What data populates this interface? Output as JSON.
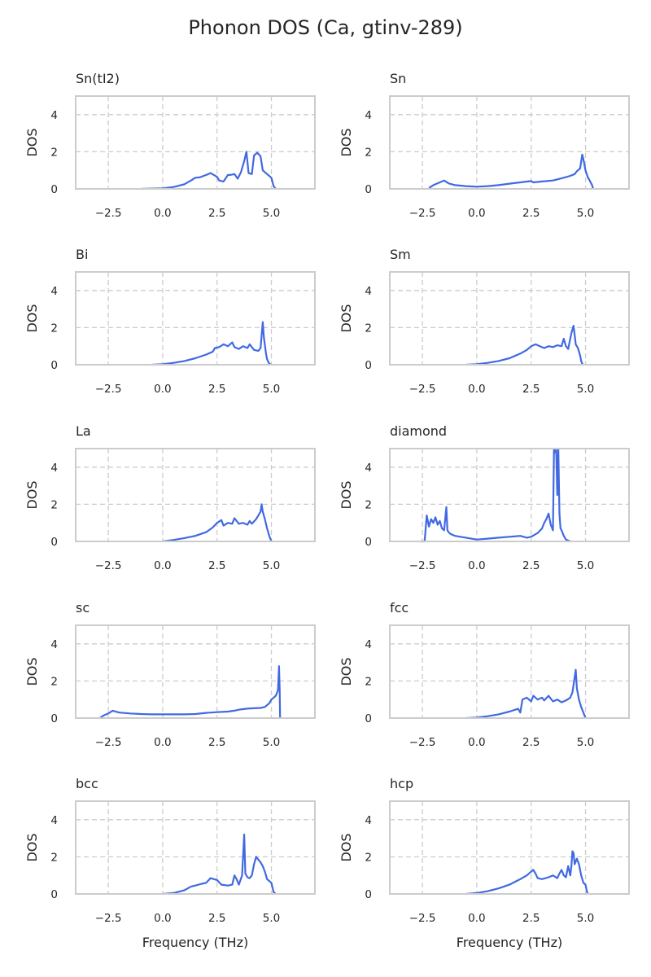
{
  "title": "Phonon DOS (Ca, gtinv-289)",
  "accent_color": "#4169e1",
  "chart_data": [
    {
      "type": "line",
      "title": "Sn(tI2)",
      "xlabel": "",
      "ylabel": "DOS",
      "xlim": [
        -4.0,
        7.0
      ],
      "ylim": [
        0,
        5
      ],
      "xticks": [
        -2.5,
        0.0,
        2.5,
        5.0
      ],
      "xtick_labels": [
        "−2.5",
        "0.0",
        "2.5",
        "5.0"
      ],
      "yticks": [
        0,
        2,
        4
      ],
      "ytick_labels": [
        "0",
        "2",
        "4"
      ],
      "grid": true,
      "x": [
        -1.0,
        0.0,
        0.5,
        1.0,
        1.3,
        1.5,
        1.7,
        2.0,
        2.2,
        2.5,
        2.6,
        2.8,
        3.0,
        3.1,
        3.3,
        3.45,
        3.6,
        3.75,
        3.85,
        3.95,
        4.1,
        4.2,
        4.35,
        4.5,
        4.6,
        4.8,
        5.0,
        5.1,
        5.2
      ],
      "y": [
        0.0,
        0.03,
        0.1,
        0.25,
        0.45,
        0.6,
        0.62,
        0.75,
        0.85,
        0.65,
        0.45,
        0.4,
        0.75,
        0.75,
        0.8,
        0.55,
        0.9,
        1.5,
        2.0,
        0.85,
        0.8,
        1.8,
        1.95,
        1.75,
        1.0,
        0.8,
        0.6,
        0.15,
        0.0
      ]
    },
    {
      "type": "line",
      "title": "Sn",
      "xlabel": "",
      "ylabel": "DOS",
      "xlim": [
        -4.0,
        7.0
      ],
      "ylim": [
        0,
        5
      ],
      "xticks": [
        -2.5,
        0.0,
        2.5,
        5.0
      ],
      "xtick_labels": [
        "−2.5",
        "0.0",
        "2.5",
        "5.0"
      ],
      "yticks": [
        0,
        2,
        4
      ],
      "ytick_labels": [
        "0",
        "2",
        "4"
      ],
      "grid": true,
      "x": [
        -2.2,
        -2.0,
        -1.7,
        -1.5,
        -1.3,
        -1.0,
        -0.5,
        0.0,
        0.5,
        1.0,
        1.5,
        2.0,
        2.5,
        2.6,
        3.0,
        3.5,
        4.0,
        4.3,
        4.5,
        4.6,
        4.75,
        4.85,
        4.9,
        5.0,
        5.1,
        5.3,
        5.35
      ],
      "y": [
        0.05,
        0.2,
        0.35,
        0.45,
        0.3,
        0.2,
        0.15,
        0.12,
        0.15,
        0.2,
        0.28,
        0.35,
        0.42,
        0.35,
        0.4,
        0.45,
        0.6,
        0.7,
        0.8,
        0.95,
        1.1,
        1.85,
        1.6,
        1.0,
        0.65,
        0.2,
        0.0
      ]
    },
    {
      "type": "line",
      "title": "Bi",
      "xlabel": "",
      "ylabel": "DOS",
      "xlim": [
        -4.0,
        7.0
      ],
      "ylim": [
        0,
        5
      ],
      "xticks": [
        -2.5,
        0.0,
        2.5,
        5.0
      ],
      "xtick_labels": [
        "−2.5",
        "0.0",
        "2.5",
        "5.0"
      ],
      "yticks": [
        0,
        2,
        4
      ],
      "ytick_labels": [
        "0",
        "2",
        "4"
      ],
      "grid": true,
      "x": [
        -0.5,
        0.0,
        0.5,
        1.0,
        1.5,
        2.0,
        2.3,
        2.4,
        2.6,
        2.8,
        3.0,
        3.2,
        3.3,
        3.5,
        3.7,
        3.9,
        4.0,
        4.2,
        4.4,
        4.5,
        4.6,
        4.65,
        4.75,
        4.8,
        4.9,
        5.0
      ],
      "y": [
        0.0,
        0.03,
        0.1,
        0.2,
        0.35,
        0.55,
        0.7,
        0.9,
        0.95,
        1.1,
        1.0,
        1.2,
        0.95,
        0.85,
        1.0,
        0.9,
        1.1,
        0.8,
        0.75,
        0.9,
        2.3,
        1.5,
        0.6,
        0.3,
        0.05,
        0.0
      ]
    },
    {
      "type": "line",
      "title": "Sm",
      "xlabel": "",
      "ylabel": "DOS",
      "xlim": [
        -4.0,
        7.0
      ],
      "ylim": [
        0,
        5
      ],
      "xticks": [
        -2.5,
        0.0,
        2.5,
        5.0
      ],
      "xtick_labels": [
        "−2.5",
        "0.0",
        "2.5",
        "5.0"
      ],
      "yticks": [
        0,
        2,
        4
      ],
      "ytick_labels": [
        "0",
        "2",
        "4"
      ],
      "grid": true,
      "x": [
        -0.5,
        0.0,
        0.5,
        1.0,
        1.5,
        2.0,
        2.3,
        2.5,
        2.7,
        2.9,
        3.1,
        3.3,
        3.5,
        3.7,
        3.9,
        4.0,
        4.1,
        4.2,
        4.35,
        4.45,
        4.5,
        4.55,
        4.65,
        4.75,
        4.8,
        4.85,
        4.9
      ],
      "y": [
        0.0,
        0.03,
        0.1,
        0.2,
        0.35,
        0.6,
        0.8,
        1.0,
        1.1,
        1.0,
        0.9,
        1.0,
        0.95,
        1.05,
        1.0,
        1.4,
        1.0,
        0.85,
        1.7,
        2.1,
        1.6,
        1.1,
        0.9,
        0.5,
        0.2,
        0.05,
        0.0
      ]
    },
    {
      "type": "line",
      "title": "La",
      "xlabel": "",
      "ylabel": "DOS",
      "xlim": [
        -4.0,
        7.0
      ],
      "ylim": [
        0,
        5
      ],
      "xticks": [
        -2.5,
        0.0,
        2.5,
        5.0
      ],
      "xtick_labels": [
        "−2.5",
        "0.0",
        "2.5",
        "5.0"
      ],
      "yticks": [
        0,
        2,
        4
      ],
      "ytick_labels": [
        "0",
        "2",
        "4"
      ],
      "grid": true,
      "x": [
        0.0,
        0.5,
        1.0,
        1.5,
        2.0,
        2.3,
        2.5,
        2.7,
        2.8,
        3.0,
        3.2,
        3.3,
        3.5,
        3.7,
        3.9,
        4.0,
        4.1,
        4.3,
        4.5,
        4.55,
        4.6,
        4.7,
        4.8,
        4.9,
        5.0
      ],
      "y": [
        0.0,
        0.08,
        0.18,
        0.3,
        0.5,
        0.75,
        1.0,
        1.15,
        0.85,
        1.0,
        0.95,
        1.25,
        0.95,
        1.0,
        0.9,
        1.1,
        0.95,
        1.2,
        1.6,
        2.0,
        1.6,
        1.2,
        0.7,
        0.3,
        0.0
      ]
    },
    {
      "type": "line",
      "title": "diamond",
      "xlabel": "",
      "ylabel": "DOS",
      "xlim": [
        -4.0,
        7.0
      ],
      "ylim": [
        0,
        5
      ],
      "xticks": [
        -2.5,
        0.0,
        2.5,
        5.0
      ],
      "xtick_labels": [
        "−2.5",
        "0.0",
        "2.5",
        "5.0"
      ],
      "yticks": [
        0,
        2,
        4
      ],
      "ytick_labels": [
        "0",
        "2",
        "4"
      ],
      "grid": true,
      "x": [
        -2.6,
        -2.4,
        -2.3,
        -2.2,
        -2.1,
        -2.0,
        -1.9,
        -1.8,
        -1.7,
        -1.6,
        -1.5,
        -1.4,
        -1.35,
        -1.3,
        -1.2,
        -1.0,
        -0.5,
        0.0,
        0.5,
        1.0,
        1.5,
        2.0,
        2.3,
        2.5,
        2.8,
        3.0,
        3.1,
        3.2,
        3.3,
        3.4,
        3.5,
        3.55,
        3.6,
        3.65,
        3.7,
        3.75,
        3.8,
        3.85,
        3.9,
        4.0,
        4.1,
        4.2,
        4.3
      ],
      "y": [
        0.0,
        0.0,
        1.4,
        0.8,
        1.2,
        1.0,
        1.3,
        0.9,
        1.1,
        0.7,
        0.6,
        1.85,
        0.6,
        0.5,
        0.4,
        0.3,
        0.2,
        0.1,
        0.15,
        0.2,
        0.25,
        0.3,
        0.2,
        0.25,
        0.45,
        0.7,
        1.0,
        1.2,
        1.5,
        0.9,
        0.6,
        5.0,
        4.8,
        5.0,
        2.5,
        5.0,
        1.5,
        0.7,
        0.6,
        0.3,
        0.1,
        0.05,
        0.0
      ]
    },
    {
      "type": "line",
      "title": "sc",
      "xlabel": "",
      "ylabel": "DOS",
      "xlim": [
        -4.0,
        7.0
      ],
      "ylim": [
        0,
        5
      ],
      "xticks": [
        -2.5,
        0.0,
        2.5,
        5.0
      ],
      "xtick_labels": [
        "−2.5",
        "0.0",
        "2.5",
        "5.0"
      ],
      "yticks": [
        0,
        2,
        4
      ],
      "ytick_labels": [
        "0",
        "2",
        "4"
      ],
      "grid": true,
      "x": [
        -2.9,
        -2.7,
        -2.5,
        -2.3,
        -2.0,
        -1.5,
        -1.0,
        -0.5,
        0.0,
        0.5,
        1.0,
        1.5,
        2.0,
        2.5,
        3.0,
        3.3,
        3.5,
        3.8,
        4.0,
        4.5,
        4.7,
        4.9,
        5.0,
        5.1,
        5.2,
        5.3,
        5.35,
        5.38,
        5.4
      ],
      "y": [
        0.0,
        0.15,
        0.25,
        0.4,
        0.3,
        0.25,
        0.22,
        0.2,
        0.2,
        0.2,
        0.2,
        0.22,
        0.28,
        0.32,
        0.35,
        0.4,
        0.45,
        0.5,
        0.52,
        0.55,
        0.6,
        0.8,
        1.0,
        1.1,
        1.2,
        1.5,
        2.8,
        1.5,
        0.0
      ]
    },
    {
      "type": "line",
      "title": "fcc",
      "xlabel": "",
      "ylabel": "DOS",
      "xlim": [
        -4.0,
        7.0
      ],
      "ylim": [
        0,
        5
      ],
      "xticks": [
        -2.5,
        0.0,
        2.5,
        5.0
      ],
      "xtick_labels": [
        "−2.5",
        "0.0",
        "2.5",
        "5.0"
      ],
      "yticks": [
        0,
        2,
        4
      ],
      "ytick_labels": [
        "0",
        "2",
        "4"
      ],
      "grid": true,
      "x": [
        -0.5,
        0.0,
        0.5,
        1.0,
        1.5,
        1.9,
        2.0,
        2.1,
        2.3,
        2.5,
        2.6,
        2.8,
        3.0,
        3.1,
        3.3,
        3.5,
        3.7,
        3.9,
        4.1,
        4.3,
        4.4,
        4.5,
        4.55,
        4.6,
        4.7,
        4.8,
        4.9,
        5.0
      ],
      "y": [
        0.0,
        0.03,
        0.1,
        0.2,
        0.35,
        0.5,
        0.3,
        1.0,
        1.1,
        0.9,
        1.2,
        1.0,
        1.1,
        0.95,
        1.2,
        0.9,
        1.0,
        0.85,
        0.95,
        1.1,
        1.4,
        2.2,
        2.6,
        1.6,
        1.0,
        0.6,
        0.3,
        0.0
      ]
    },
    {
      "type": "line",
      "title": "bcc",
      "xlabel": "Frequency (THz)",
      "ylabel": "DOS",
      "xlim": [
        -4.0,
        7.0
      ],
      "ylim": [
        0,
        5
      ],
      "xticks": [
        -2.5,
        0.0,
        2.5,
        5.0
      ],
      "xtick_labels": [
        "−2.5",
        "0.0",
        "2.5",
        "5.0"
      ],
      "yticks": [
        0,
        2,
        4
      ],
      "ytick_labels": [
        "0",
        "2",
        "4"
      ],
      "grid": true,
      "x": [
        0.0,
        0.5,
        1.0,
        1.3,
        1.5,
        1.8,
        2.0,
        2.2,
        2.5,
        2.7,
        3.0,
        3.2,
        3.3,
        3.4,
        3.5,
        3.65,
        3.75,
        3.8,
        3.9,
        4.0,
        4.1,
        4.2,
        4.3,
        4.5,
        4.6,
        4.7,
        4.8,
        5.0,
        5.1,
        5.2
      ],
      "y": [
        0.0,
        0.05,
        0.2,
        0.4,
        0.45,
        0.55,
        0.6,
        0.85,
        0.75,
        0.5,
        0.45,
        0.5,
        1.0,
        0.8,
        0.5,
        1.0,
        3.2,
        1.1,
        0.9,
        0.85,
        1.0,
        1.6,
        2.0,
        1.7,
        1.5,
        1.2,
        0.8,
        0.6,
        0.1,
        0.0
      ]
    },
    {
      "type": "line",
      "title": "hcp",
      "xlabel": "Frequency (THz)",
      "ylabel": "DOS",
      "xlim": [
        -4.0,
        7.0
      ],
      "ylim": [
        0,
        5
      ],
      "xticks": [
        -2.5,
        0.0,
        2.5,
        5.0
      ],
      "xtick_labels": [
        "−2.5",
        "0.0",
        "2.5",
        "5.0"
      ],
      "yticks": [
        0,
        2,
        4
      ],
      "ytick_labels": [
        "0",
        "2",
        "4"
      ],
      "grid": true,
      "x": [
        -0.5,
        0.0,
        0.5,
        1.0,
        1.5,
        2.0,
        2.3,
        2.5,
        2.6,
        2.7,
        2.8,
        3.0,
        3.3,
        3.5,
        3.7,
        3.8,
        3.9,
        4.0,
        4.1,
        4.2,
        4.3,
        4.35,
        4.4,
        4.45,
        4.5,
        4.6,
        4.7,
        4.8,
        4.9,
        5.0,
        5.05,
        5.1
      ],
      "y": [
        0.0,
        0.05,
        0.15,
        0.3,
        0.5,
        0.8,
        1.0,
        1.2,
        1.3,
        1.1,
        0.85,
        0.8,
        0.9,
        1.0,
        0.85,
        1.1,
        1.3,
        1.0,
        0.9,
        1.5,
        1.0,
        1.5,
        2.3,
        2.2,
        1.6,
        1.9,
        1.6,
        1.0,
        0.6,
        0.5,
        0.2,
        0.0
      ]
    }
  ]
}
